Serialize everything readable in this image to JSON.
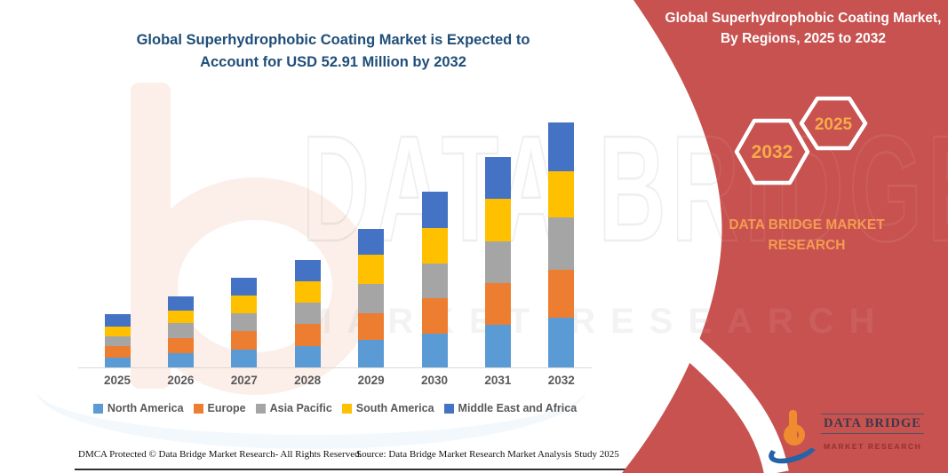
{
  "title": {
    "line1": "Global Superhydrophobic Coating Market is Expected to",
    "line2": "Account for USD 52.91 Million by 2032"
  },
  "side_panel": {
    "heading": "Global Superhydrophobic Coating Market, By Regions, 2025 to 2032",
    "hexagon_back_label": "2032",
    "hexagon_front_label": "2025",
    "caption": "DATA BRIDGE MARKET RESEARCH",
    "logo": {
      "brand": "DATA BRIDGE",
      "tagline": "MARKET RESEARCH"
    }
  },
  "watermark": {
    "brand": "DATA BRIDGE",
    "tagline": "MARKET RESEARCH"
  },
  "footer": {
    "left": "DMCA Protected © Data Bridge Market Research-  All Rights Reserved.",
    "right": "Source: Data Bridge Market Research  Market Analysis Study 2025"
  },
  "colors": {
    "panel_red": "#C75250",
    "title_blue": "#1F4E79",
    "accent_orange": "#F59C50",
    "axis_text_gray": "#595959"
  },
  "chart_data": {
    "type": "bar",
    "stacked": true,
    "title": "Global Superhydrophobic Coating Market is Expected to Account for USD 52.91 Million by 2032",
    "unit": "USD Million",
    "categories": [
      "2025",
      "2026",
      "2027",
      "2028",
      "2029",
      "2030",
      "2031",
      "2032"
    ],
    "series": [
      {
        "name": "North America",
        "color": "#5B9BD5",
        "values": [
          2.2,
          3.0,
          3.9,
          4.6,
          6.0,
          7.2,
          9.2,
          10.7
        ]
      },
      {
        "name": "Europe",
        "color": "#ED7D31",
        "values": [
          2.4,
          3.4,
          4.0,
          4.7,
          5.6,
          7.7,
          9.1,
          10.4
        ]
      },
      {
        "name": "Asia Pacific",
        "color": "#A5A5A5",
        "values": [
          2.1,
          3.2,
          3.8,
          4.7,
          6.5,
          7.5,
          9.0,
          11.3
        ]
      },
      {
        "name": "South America",
        "color": "#FFC000",
        "values": [
          2.1,
          2.7,
          3.9,
          4.6,
          6.3,
          7.7,
          9.2,
          10.0
        ]
      },
      {
        "name": "Middle East and Africa",
        "color": "#4472C4",
        "values": [
          2.7,
          3.1,
          3.8,
          4.6,
          5.6,
          7.8,
          9.0,
          10.5
        ]
      }
    ],
    "totals": [
      11.5,
      15.4,
      19.4,
      23.2,
      30.0,
      37.9,
      45.5,
      52.9
    ],
    "ylim": [
      0,
      55
    ],
    "grid": false,
    "y_axis_visible": false,
    "legend_position": "bottom"
  }
}
